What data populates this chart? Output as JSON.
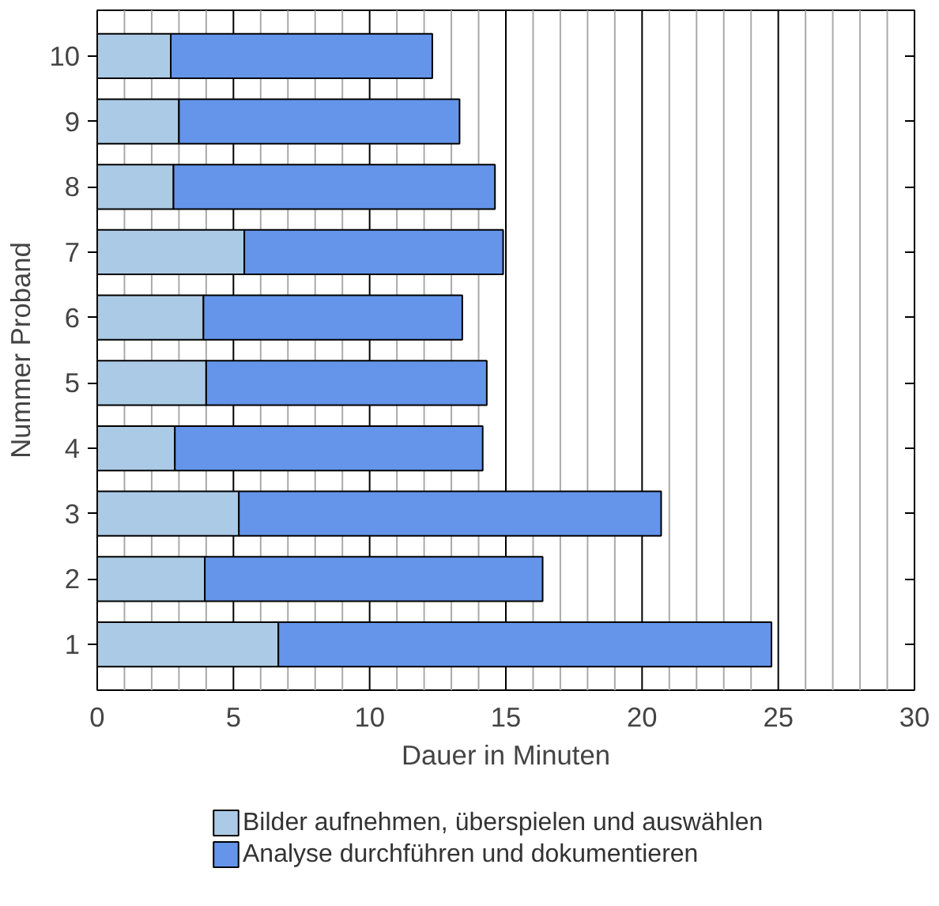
{
  "chart_data": {
    "type": "bar",
    "orientation": "horizontal",
    "stacked": true,
    "xlabel": "Dauer in Minuten",
    "ylabel": "Nummer Proband",
    "categories": [
      "10",
      "9",
      "8",
      "7",
      "6",
      "5",
      "4",
      "3",
      "2",
      "1"
    ],
    "series": [
      {
        "name": "Bilder aufnehmen, überspielen und auswählen",
        "color": "#abcae6",
        "values": [
          2.7,
          3.0,
          2.8,
          5.4,
          3.9,
          4.0,
          2.85,
          5.2,
          3.95,
          6.65
        ]
      },
      {
        "name": "Analyse durchführen und dokumentieren",
        "color": "#6495ea",
        "values": [
          9.6,
          10.3,
          11.8,
          9.5,
          9.5,
          10.3,
          11.3,
          15.5,
          12.4,
          18.1
        ]
      }
    ],
    "xlim": [
      0,
      30
    ],
    "xticks": [
      0,
      {
        "value": 1,
        "label": null
      },
      {
        "value": 2,
        "label": null
      },
      {
        "value": 3,
        "label": null
      },
      {
        "value": 4,
        "label": null
      },
      5,
      {
        "value": 6,
        "label": null
      },
      {
        "value": 7,
        "label": null
      },
      {
        "value": 8,
        "label": null
      },
      {
        "value": 9,
        "label": null
      },
      10,
      {
        "value": 11,
        "label": null
      },
      {
        "value": 12,
        "label": null
      },
      {
        "value": 13,
        "label": null
      },
      {
        "value": 14,
        "label": null
      },
      15,
      {
        "value": 16,
        "label": null
      },
      {
        "value": 17,
        "label": null
      },
      {
        "value": 18,
        "label": null
      },
      {
        "value": 19,
        "label": null
      },
      20,
      {
        "value": 21,
        "label": null
      },
      {
        "value": 22,
        "label": null
      },
      {
        "value": 23,
        "label": null
      },
      {
        "value": 24,
        "label": null
      },
      25,
      {
        "value": 26,
        "label": null
      },
      {
        "value": 27,
        "label": null
      },
      {
        "value": 28,
        "label": null
      },
      {
        "value": 29,
        "label": null
      },
      30
    ],
    "grid": "x",
    "legend": "bottom"
  }
}
